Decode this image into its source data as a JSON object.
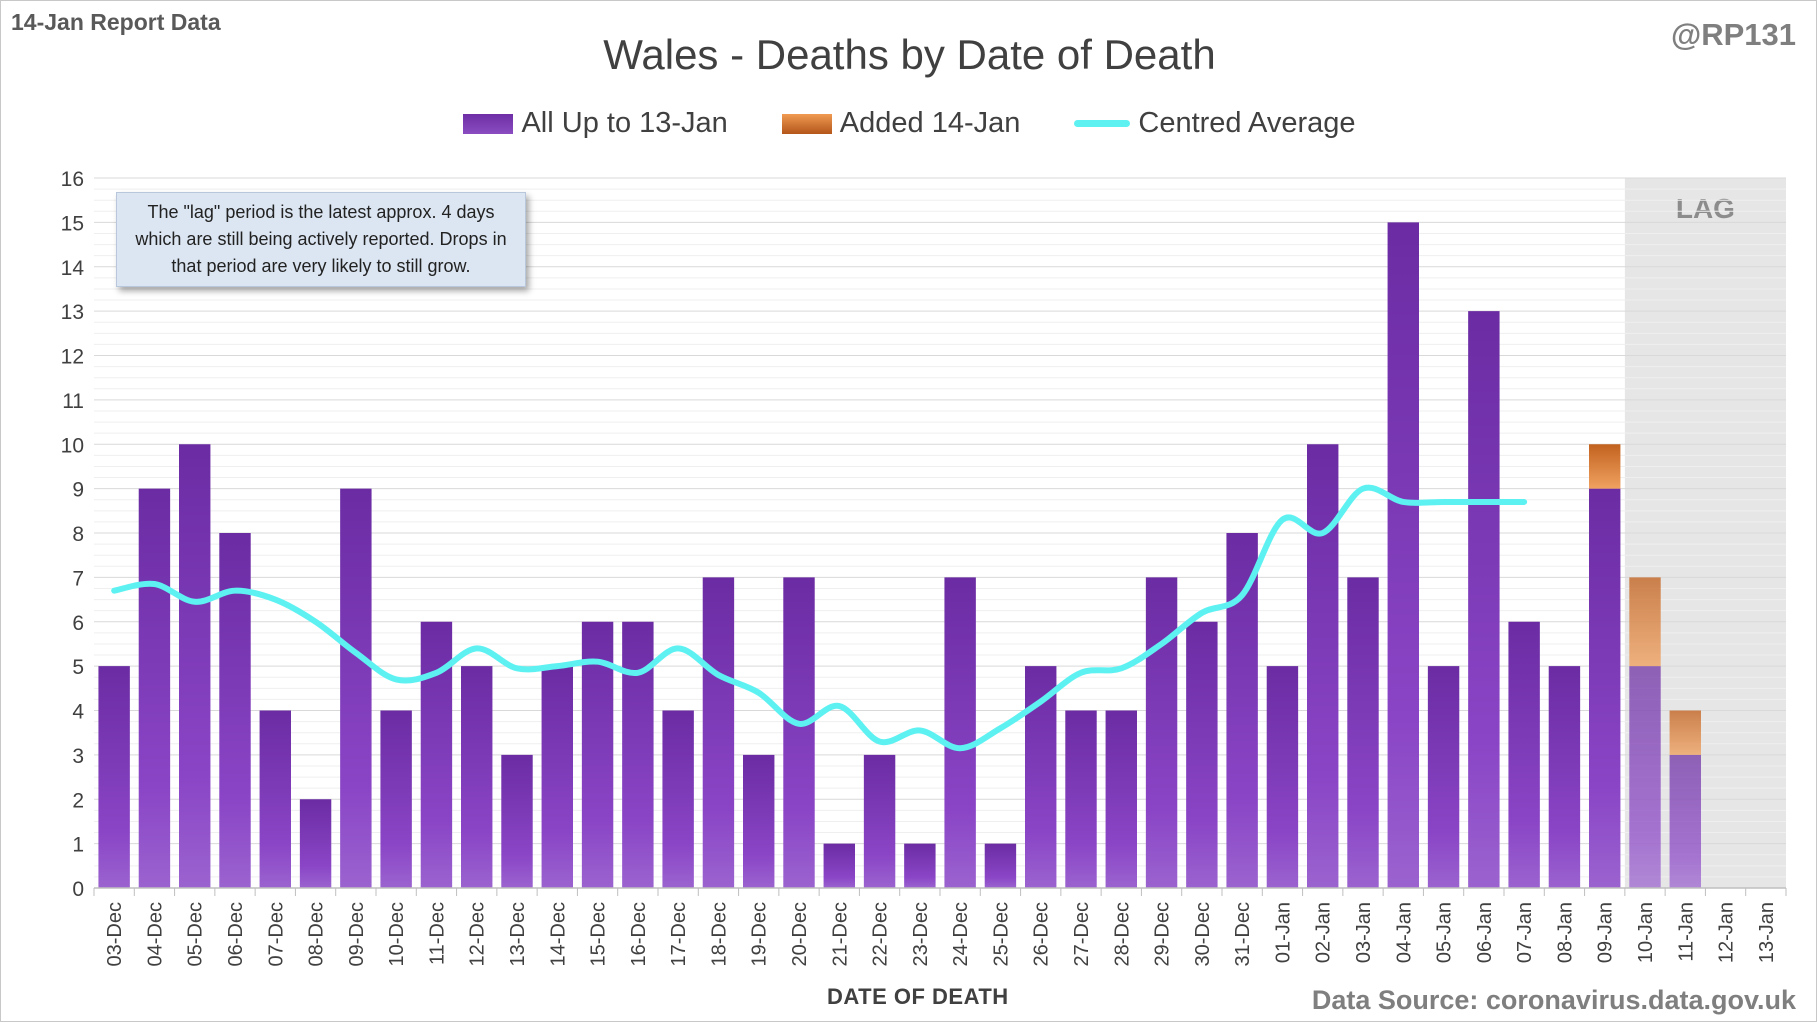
{
  "report_label": "14-Jan Report Data",
  "handle": "@RP131",
  "source": "Data Source: coronavirus.data.gov.uk",
  "note": "The \"lag\" period is the latest approx. 4 days which are still being actively reported.  Drops in that period are very likely to still grow.",
  "colors": {
    "primary": "#7a3ab5",
    "added": "#d87a35",
    "average": "#5ef1f2",
    "lag_shade": "#e6e6e6"
  },
  "chart_data": {
    "type": "bar",
    "title": "Wales - Deaths by Date of Death",
    "xlabel": "DATE OF DEATH",
    "ylabel": "",
    "ylim": [
      0,
      16
    ],
    "yticks": [
      0,
      1,
      2,
      3,
      4,
      5,
      6,
      7,
      8,
      9,
      10,
      11,
      12,
      13,
      14,
      15,
      16
    ],
    "grid": true,
    "legend_position": "top-center",
    "categories": [
      "03-Dec",
      "04-Dec",
      "05-Dec",
      "06-Dec",
      "07-Dec",
      "08-Dec",
      "09-Dec",
      "10-Dec",
      "11-Dec",
      "12-Dec",
      "13-Dec",
      "14-Dec",
      "15-Dec",
      "16-Dec",
      "17-Dec",
      "18-Dec",
      "19-Dec",
      "20-Dec",
      "21-Dec",
      "22-Dec",
      "23-Dec",
      "24-Dec",
      "25-Dec",
      "26-Dec",
      "27-Dec",
      "28-Dec",
      "29-Dec",
      "30-Dec",
      "31-Dec",
      "01-Jan",
      "02-Jan",
      "03-Jan",
      "04-Jan",
      "05-Jan",
      "06-Jan",
      "07-Jan",
      "08-Jan",
      "09-Jan",
      "10-Jan",
      "11-Jan",
      "12-Jan",
      "13-Jan"
    ],
    "series": [
      {
        "name": "All Up to 13-Jan",
        "kind": "bar",
        "values": [
          5,
          9,
          10,
          8,
          4,
          2,
          9,
          4,
          6,
          5,
          3,
          5,
          6,
          6,
          4,
          7,
          3,
          7,
          1,
          3,
          1,
          7,
          1,
          5,
          4,
          4,
          7,
          6,
          8,
          5,
          10,
          7,
          15,
          5,
          13,
          6,
          5,
          9,
          5,
          3,
          0,
          0
        ]
      },
      {
        "name": "Added 14-Jan",
        "kind": "bar-stacked",
        "values": [
          0,
          0,
          0,
          0,
          0,
          0,
          0,
          0,
          0,
          0,
          0,
          0,
          0,
          0,
          0,
          0,
          0,
          0,
          0,
          0,
          0,
          0,
          0,
          0,
          0,
          0,
          0,
          0,
          0,
          0,
          0,
          0,
          0,
          0,
          0,
          0,
          0,
          1,
          2,
          1,
          0,
          0
        ]
      },
      {
        "name": "Centred Average",
        "kind": "line",
        "values": [
          6.7,
          6.85,
          6.45,
          6.7,
          6.5,
          6.0,
          5.3,
          4.7,
          4.85,
          5.4,
          4.95,
          5.0,
          5.1,
          4.85,
          5.4,
          4.8,
          4.4,
          3.7,
          4.1,
          3.3,
          3.55,
          3.15,
          3.6,
          4.2,
          4.85,
          4.95,
          5.5,
          6.2,
          6.6,
          8.3,
          8.0,
          9.0,
          8.7,
          8.7,
          8.7,
          8.7,
          null,
          null,
          null,
          null,
          null,
          null
        ]
      }
    ],
    "annotations": [
      {
        "text": "LAG",
        "from": "10-Jan",
        "to": "13-Jan"
      }
    ]
  }
}
